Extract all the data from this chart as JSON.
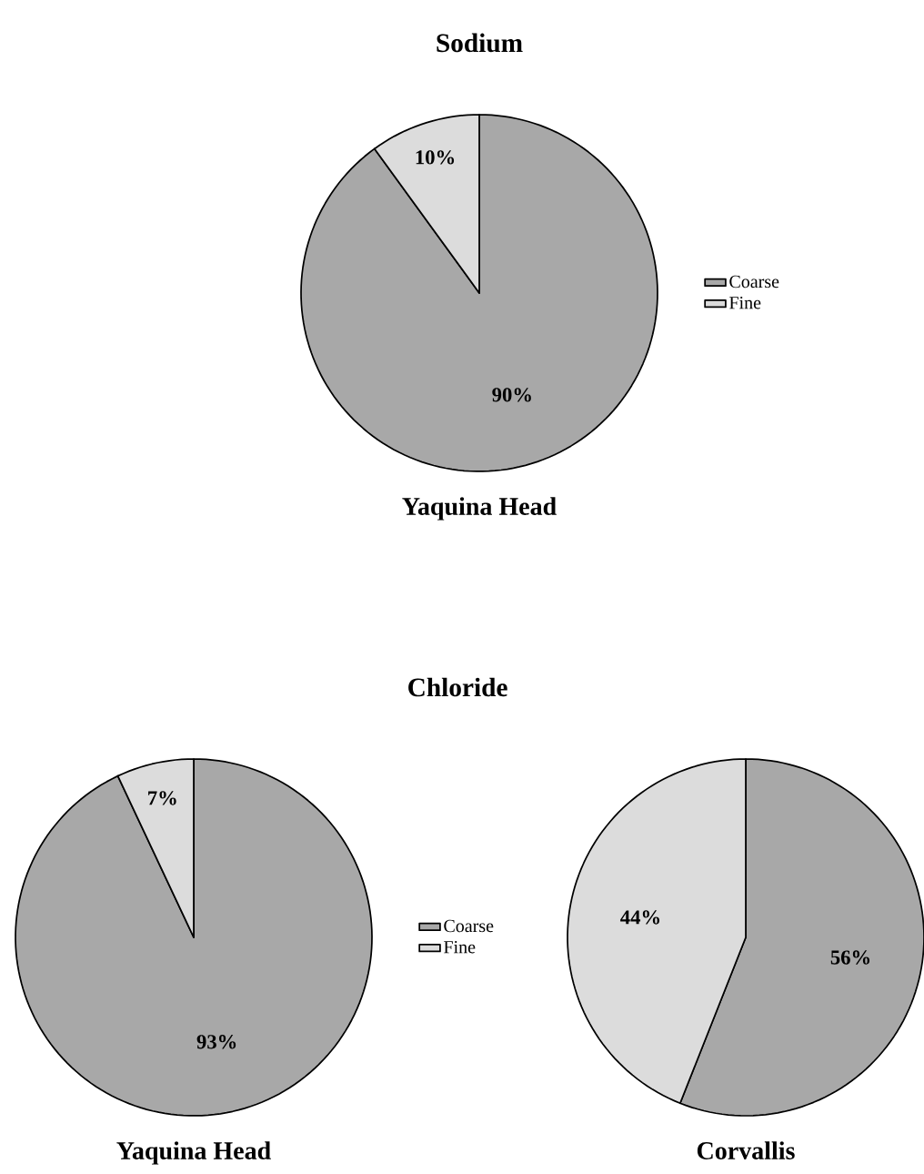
{
  "chart_data": [
    {
      "type": "pie",
      "title": "Sodium",
      "xlabel": "Yaquina Head",
      "categories": [
        "Coarse",
        "Fine"
      ],
      "values": [
        90,
        10
      ],
      "value_labels": [
        "90%",
        "10%"
      ],
      "colors": [
        "#a8a8a8",
        "#dcdcdc"
      ],
      "legend": "right"
    },
    {
      "type": "pie",
      "title": "Chloride",
      "xlabel": "Yaquina Head",
      "categories": [
        "Coarse",
        "Fine"
      ],
      "values": [
        93,
        7
      ],
      "value_labels": [
        "93%",
        "7%"
      ],
      "colors": [
        "#a8a8a8",
        "#dcdcdc"
      ],
      "legend": "right"
    },
    {
      "type": "pie",
      "xlabel": "Corvallis",
      "categories": [
        null,
        null
      ],
      "values": [
        56,
        44
      ],
      "value_labels": [
        "56%",
        "44%"
      ],
      "colors": [
        "#a8a8a8",
        "#dcdcdc"
      ]
    }
  ]
}
